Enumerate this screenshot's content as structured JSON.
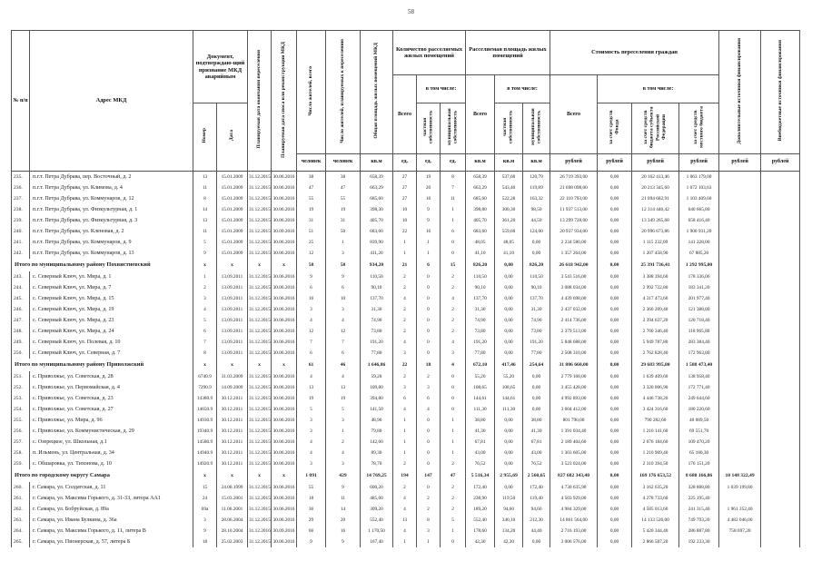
{
  "page": {
    "number": "58"
  },
  "header": {
    "num": "№ п/п",
    "address": "Адрес МКД",
    "doc_group": "Документ, подтверждаю-щий признание МКД аварийным",
    "doc_num": "Номер",
    "doc_date": "Дата",
    "date_end": "Планируемая дата окончания переселения",
    "date_dem": "Планируемая дата сноса или реконструкции МКД",
    "res_total": "Число жителей, всего",
    "res_plan": "Число жителей, планируемых к переселению",
    "area_mkd": "Общая площадь жилых помещений МКД",
    "cnt_group": "Количество расселяемых жилых помещений",
    "area_group": "Расселяемая площадь жилых помещений",
    "cost_group": "Стоимость переселения граждан",
    "total": "Всего",
    "incl": "в том числе:",
    "private": "частная собственность",
    "municipal": "муниципальная собственность",
    "fund": "за счет средств Фонда",
    "subject": "за счет средств бюджета субъекта Российской Федерации",
    "local": "за счет средств местного бюджета",
    "add": "Дополнительные источники финансирования",
    "extra": "Внебюджетные источники финансирования",
    "units": {
      "people": "человек",
      "sqm": "кв.м",
      "ed": "ед.",
      "rub": "рублей"
    }
  },
  "rows": [
    {
      "t": "d",
      "c": [
        "235.",
        "п.г.т. Петра Дубрава, пер. Восточный, д. 2",
        "13",
        "15.01.2009",
        "31.12.2015",
        "30.06.2016",
        "38",
        "38",
        "658,39",
        "27",
        "19",
        "8",
        "658,39",
        "537,60",
        "120,79",
        "26 719 393,00",
        "0,00",
        "20 162 413,46",
        "1 063 179,00",
        "",
        ""
      ]
    },
    {
      "t": "d",
      "c": [
        "236.",
        "п.г.т. Петра Дубрава, ул. Климова, д. 4",
        "11",
        "15.01.2009",
        "31.12.2015",
        "30.06.2016",
        "47",
        "47",
        "663,29",
        "27",
        "20",
        "7",
        "663,29",
        "543,40",
        "119,89",
        "21 698 098,00",
        "0,00",
        "20 213 345,60",
        "1 072 103,63",
        "",
        ""
      ]
    },
    {
      "t": "d",
      "c": [
        "237.",
        "п.г.т. Петра Дубрава, ул. Коммунаров, д. 12",
        "8",
        "15.01.2009",
        "31.12.2015",
        "30.06.2016",
        "55",
        "55",
        "685,60",
        "27",
        "16",
        "11",
        "685,60",
        "522,28",
        "163,32",
        "22 110 793,00",
        "0,00",
        "21 094 682,91",
        "1 103 409,60",
        "",
        ""
      ]
    },
    {
      "t": "d",
      "c": [
        "238.",
        "п.г.т. Петра Дубрава, ул. Физкультурная, д. 1",
        "14",
        "15.01.2009",
        "31.12.2015",
        "30.06.2016",
        "19",
        "19",
        "398,30",
        "10",
        "9",
        "1",
        "398,80",
        "300,30",
        "98,50",
        "11 937 513,00",
        "0,00",
        "12 314 446,42",
        "640 665,80",
        "",
        ""
      ]
    },
    {
      "t": "d",
      "c": [
        "239.",
        "п.г.т. Петра Дубрава, ул. Физкультурная, д. 3",
        "13",
        "15.01.2009",
        "31.12.2015",
        "30.06.2016",
        "31",
        "31",
        "405,70",
        "10",
        "9",
        "1",
        "405,70",
        "361,20",
        "44,50",
        "13 299 728,00",
        "0,00",
        "13 349 265,68",
        "658 416,40",
        "",
        ""
      ]
    },
    {
      "t": "d",
      "c": [
        "240.",
        "п.г.т. Петра Дубрава, ул. Кленовая, д. 2",
        "11",
        "15.01.2009",
        "31.12.2015",
        "30.09.2016",
        "51",
        "50",
        "683,60",
        "22",
        "16",
        "6",
        "683,60",
        "559,60",
        "124,00",
        "20 937 934,00",
        "0,00",
        "20 996 673,86",
        "1 900 931,20",
        "",
        ""
      ]
    },
    {
      "t": "d",
      "c": [
        "241.",
        "п.г.т. Петра Дубрава, ул. Коммунаров, д. 9",
        "5",
        "15.01.2009",
        "31.12.2015",
        "30.06.2016",
        "25",
        "1",
        "839,90",
        "1",
        "1",
        "0",
        "48,05",
        "48,05",
        "0,00",
        "2 234 580,00",
        "0,00",
        "1 115 232,09",
        "141 228,00",
        "",
        ""
      ]
    },
    {
      "t": "d",
      "c": [
        "242.",
        "п.г.т. Петра Дубрава, ул. Коммунаров, д. 13",
        "9",
        "15.01.2009",
        "31.12.2015",
        "30.06.2016",
        "12",
        "3",
        "411,20",
        "1",
        "1",
        "0",
        "41,10",
        "41,10",
        "0,00",
        "1 357 264,00",
        "0,00",
        "1 207 458,90",
        "67 885,20",
        "",
        ""
      ]
    },
    {
      "t": "s",
      "c": [
        "",
        "Итого по муниципальному району Похвистневский",
        "х",
        "х",
        "х",
        "х",
        "58",
        "58",
        "934,20",
        "21",
        "6",
        "15",
        "826,20",
        "0,00",
        "826,20",
        "26 618 942,00",
        "0,00",
        "25 391 736,41",
        "1 292 995,00",
        "",
        ""
      ]
    },
    {
      "t": "d",
      "c": [
        "243.",
        "с. Северный Ключ, ул.  Мира, д. 1",
        "1",
        "13.09.2011",
        "31.12.2015",
        "30.06.2016",
        "9",
        "9",
        "110,50",
        "2",
        "0",
        "2",
        "110,50",
        "0,00",
        "110,50",
        "3 543 516,00",
        "0,00",
        "3 388 394,60",
        "178 336,06",
        "",
        ""
      ]
    },
    {
      "t": "d",
      "c": [
        "244.",
        "с. Северный Ключ, ул.  Мира, д. 7",
        "2",
        "13.09.2011",
        "31.12.2015",
        "30.06.2016",
        "6",
        "6",
        "90,10",
        "2",
        "0",
        "2",
        "90,10",
        "0,00",
        "90,10",
        "3 088 034,00",
        "0,00",
        "2 992 722,80",
        "183 341,20",
        "",
        ""
      ]
    },
    {
      "t": "d",
      "c": [
        "245.",
        "с. Северный Ключ, ул.  Мира, д. 15",
        "3",
        "13.09.2011",
        "31.12.2015",
        "30.06.2016",
        "16",
        "10",
        "137,70",
        "4",
        "0",
        "4",
        "137,70",
        "0,00",
        "137,70",
        "4 439 698,00",
        "0,00",
        "4 317 473,60",
        "201 977,40",
        "",
        ""
      ]
    },
    {
      "t": "d",
      "c": [
        "246.",
        "с. Северный Ключ, ул.  Мира, д. 19",
        "4",
        "13.09.2011",
        "31.12.2015",
        "30.06.2016",
        "3",
        "3",
        "31,30",
        "2",
        "0",
        "2",
        "31,30",
        "0,00",
        "31,30",
        "2 437 032,00",
        "0,00",
        "2 366 209,40",
        "121 388,80",
        "",
        ""
      ]
    },
    {
      "t": "d",
      "c": [
        "247.",
        "с. Северный Ключ, ул.  Мира, д. 23",
        "5",
        "13.09.2011",
        "31.12.2015",
        "30.06.2016",
        "4",
        "4",
        "74,90",
        "2",
        "0",
        "2",
        "74,90",
        "0,00",
        "74,90",
        "2 414 736,00",
        "0,00",
        "2 394 637,20",
        "120 718,40",
        "",
        ""
      ]
    },
    {
      "t": "d",
      "c": [
        "248.",
        "с. Северный Ключ, ул.  Мира, д. 24",
        "6",
        "13.09.2011",
        "31.12.2015",
        "30.06.2016",
        "12",
        "12",
        "73,80",
        "2",
        "0",
        "2",
        "73,80",
        "0,00",
        "73,80",
        "2 379 513,00",
        "0,00",
        "2 760 346,40",
        "118 965,80",
        "",
        ""
      ]
    },
    {
      "t": "d",
      "c": [
        "249.",
        "с. Северный Ключ, ул. Полевая, д. 10",
        "7",
        "13.09.2011",
        "31.12.2015",
        "30.06.2016",
        "7",
        "7",
        "191,20",
        "4",
        "0",
        "4",
        "191,20",
        "0,00",
        "191,20",
        "5 848 688,00",
        "0,00",
        "5 949 787,80",
        "283 384,40",
        "",
        ""
      ]
    },
    {
      "t": "d",
      "c": [
        "250.",
        "с. Северный Ключ, ул.  Северная, д. 7",
        "8",
        "13.09.2011",
        "31.12.2015",
        "30.06.2016",
        "6",
        "6",
        "77,80",
        "3",
        "0",
        "3",
        "77,80",
        "0,00",
        "77,80",
        "2 508 310,00",
        "0,00",
        "2 762 828,40",
        "172 963,80",
        "",
        ""
      ]
    },
    {
      "t": "s",
      "c": [
        "",
        "Итого по муниципальному району Приволжский",
        "х",
        "х",
        "х",
        "х",
        "61",
        "46",
        "1 646,86",
        "22",
        "18",
        "4",
        "672,10",
        "417,46",
        "254,64",
        "31 886 660,00",
        "0,00",
        "29 683 995,80",
        "1 588 473,40",
        "",
        ""
      ]
    },
    {
      "t": "d",
      "c": [
        "251.",
        "с. Приволжье, ул.  Советская, д. 28",
        "6740.9",
        "31.03.2009",
        "31.12.2015",
        "30.06.2016",
        "4",
        "4",
        "59,20",
        "2",
        "2",
        "0",
        "55,20",
        "55,20",
        "0,00",
        "2 779 168,00",
        "0,00",
        "1 639 409,60",
        "138 958,40",
        "",
        ""
      ]
    },
    {
      "t": "d",
      "c": [
        "252.",
        "с. Приволжье, ул.  Первомайская, д. 4",
        "7290.9",
        "14.09.2009",
        "31.12.2015",
        "30.06.2016",
        "13",
        "13",
        "109,80",
        "3",
        "3",
        "0",
        "108,65",
        "108,65",
        "0,00",
        "3 455 428,00",
        "0,00",
        "3 320 006,90",
        "172 771,40",
        "",
        ""
      ]
    },
    {
      "t": "d",
      "c": [
        "253.",
        "с. Приволжье, ул.  Советская, д. 23",
        "14380.9",
        "30.12.2011",
        "31.12.2015",
        "30.06.2016",
        "19",
        "19",
        "394,80",
        "6",
        "6",
        "0",
        "144,61",
        "144,61",
        "0,00",
        "4 992 893,00",
        "0,00",
        "4 446 738,20",
        "249 644,60",
        "",
        ""
      ]
    },
    {
      "t": "d",
      "c": [
        "254.",
        "с. Приволжье, ул.  Советская, д. 27",
        "14650.9",
        "30.12.2011",
        "31.12.2015",
        "30.06.2016",
        "5",
        "5",
        "141,50",
        "4",
        "4",
        "0",
        "111,30",
        "111,30",
        "0,00",
        "3 604 412,00",
        "0,00",
        "3 424 316,60",
        "180 220,60",
        "",
        ""
      ]
    },
    {
      "t": "d",
      "c": [
        "255.",
        "с. Приволжье, ул.  Мира, д. 96",
        "14930.9",
        "30.12.2011",
        "31.12.2015",
        "30.06.2016",
        "3",
        "3",
        "48,90",
        "1",
        "0",
        "1",
        "38,80",
        "0,00",
        "38,80",
        "801 790,00",
        "0,00",
        "790 282,60",
        "40 089,50",
        "",
        ""
      ]
    },
    {
      "t": "d",
      "c": [
        "256.",
        "с. Приволжье, ул. Коммунистическая, д. 29",
        "19340.9",
        "30.12.2011",
        "31.12.2015",
        "30.06.2016",
        "3",
        "1",
        "79,80",
        "1",
        "0",
        "1",
        "41,30",
        "0,00",
        "41,30",
        "1 391 034,40",
        "0,00",
        "1 216 141,60",
        "69 551,70",
        "",
        ""
      ]
    },
    {
      "t": "d",
      "c": [
        "257.",
        "с. Озерецкое, ул. Школьная, д.1",
        "14580.9",
        "30.12.2011",
        "31.12.2015",
        "30.06.2016",
        "4",
        "2",
        "142,60",
        "1",
        "0",
        "1",
        "67,81",
        "0,00",
        "67,81",
        "2 189 404,60",
        "0,00",
        "2 076 184,60",
        "109 470,20",
        "",
        ""
      ]
    },
    {
      "t": "d",
      "c": [
        "258.",
        "п. Ильмень, ул. Центральная, д. 34",
        "14940.9",
        "30.12.2011",
        "31.12.2015",
        "30.06.2016",
        "4",
        "4",
        "89,30",
        "1",
        "0",
        "1",
        "43,00",
        "0,00",
        "43,00",
        "1 303 605,00",
        "0,00",
        "1 210 909,40",
        "65 180,30",
        "",
        ""
      ]
    },
    {
      "t": "d",
      "c": [
        "259.",
        "с. Обшаровка, ул. Тихонова, д. 10",
        "14920.9",
        "30.12.2011",
        "31.12.2015",
        "30.06.2016",
        "3",
        "3",
        "78,70",
        "2",
        "0",
        "2",
        "76,52",
        "0,00",
        "76,52",
        "3 523 024,00",
        "0,00",
        "2 310 394,50",
        "176 151,20",
        "",
        ""
      ]
    },
    {
      "t": "s",
      "c": [
        "",
        "Итого по городскому округу Самара",
        "х",
        "х",
        "х",
        "х",
        "1 091",
        "429",
        "14 769,25",
        "194",
        "147",
        "47",
        "5 516,34",
        "2 955,69",
        "2 560,65",
        "827 682 343,40",
        "0,00",
        "169 176 653,52",
        "8 680 166,86",
        "10 148 322,49",
        ""
      ]
    },
    {
      "t": "d",
      "c": [
        "260.",
        "г. Самара, ул. Солдатская, д. 11",
        "15",
        "24.08.1999",
        "31.12.2015",
        "30.06.2016",
        "55",
        "9",
        "600,20",
        "2",
        "0",
        "2",
        "172,40",
        "0,00",
        "172,40",
        "4 730 635,90",
        "0,00",
        "3 162 635,20",
        "328 888,80",
        "1 039 199,80",
        ""
      ]
    },
    {
      "t": "d",
      "c": [
        "261.",
        "г. Самара, ул. Максима Горького, д. 31-33, литера АА1",
        "24",
        "15.03.2001",
        "31.12.2015",
        "30.06.2016",
        "18",
        "11",
        "485,60",
        "4",
        "2",
        "2",
        "238,90",
        "119,50",
        "119,40",
        "4 503 929,00",
        "0,00",
        "4 278 733,60",
        "225 195,40",
        "",
        ""
      ]
    },
    {
      "t": "d",
      "c": [
        "262.",
        "г. Самара, ул. Бобруйская, д. 89а",
        "69а",
        "11.06.2001",
        "31.12.2015",
        "30.06.2016",
        "36",
        "14",
        "309,20",
        "4",
        "2",
        "2",
        "189,20",
        "94,60",
        "94,60",
        "4 984 329,00",
        "0,00",
        "4 585 013,60",
        "241 315,40",
        "1 961 352,40",
        ""
      ]
    },
    {
      "t": "d",
      "c": [
        "263.",
        "г. Самара, ул. Ивана Булкина, д. 36а",
        "3",
        "28.06.2004",
        "31.12.2015",
        "30.06.2016",
        "29",
        "20",
        "552,40",
        "13",
        "8",
        "5",
        "552,40",
        "340,10",
        "212,30",
        "14 861 564,00",
        "0,00",
        "14 133 526,00",
        "749 793,20",
        "4 482 046,00",
        ""
      ]
    },
    {
      "t": "d",
      "c": [
        "264.",
        "г. Самара, ул. Максима Горького, д. 11, литера В",
        "9",
        "28.10.2004",
        "31.12.2016",
        "30.09.2016",
        "66",
        "16",
        "1 170,50",
        "4",
        "3",
        "1",
        "178,60",
        "134,20",
        "44,40",
        "2 716 193,00",
        "0,00",
        "5 420 344,40",
        "286 887,80",
        "758 697,20",
        ""
      ]
    },
    {
      "t": "d",
      "c": [
        "265.",
        "г. Самара, ул. Пионерская, д. 57, литера Б",
        "18",
        "25.02.2003",
        "31.12.2015",
        "30.06.2016",
        "9",
        "9",
        "167,40",
        "1",
        "1",
        "0",
        "42,30",
        "42,30",
        "0,00",
        "3 006 576,00",
        "0,00",
        "2 866 587,20",
        "192 233,30",
        "",
        ""
      ]
    }
  ]
}
